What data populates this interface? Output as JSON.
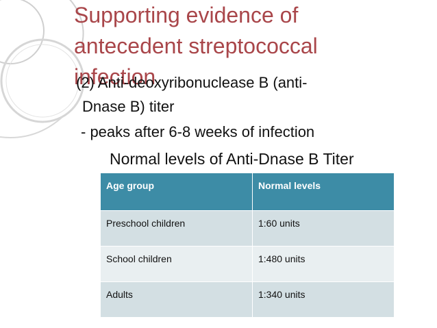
{
  "title": "Supporting evidence of antecedent streptococcal infection",
  "lines": [
    "(2) Anti-deoxyribonuclease B (anti-",
    "Dnase B) titer",
    "- peaks after 6-8 weeks of infection",
    "Normal levels of Anti-Dnase B Titer"
  ],
  "table": {
    "headers": [
      "Age group",
      "Normal levels"
    ],
    "rows": [
      [
        "Preschool children",
        "1:60 units"
      ],
      [
        "School children",
        "1:480 units"
      ],
      [
        "Adults",
        "1:340 units"
      ]
    ]
  },
  "colors": {
    "title": "#a9464a",
    "header_bg": "#3d8ca6",
    "row_dark": "#d3dfe3",
    "row_light": "#e9eff1",
    "decoration": "#c9c9c9"
  }
}
